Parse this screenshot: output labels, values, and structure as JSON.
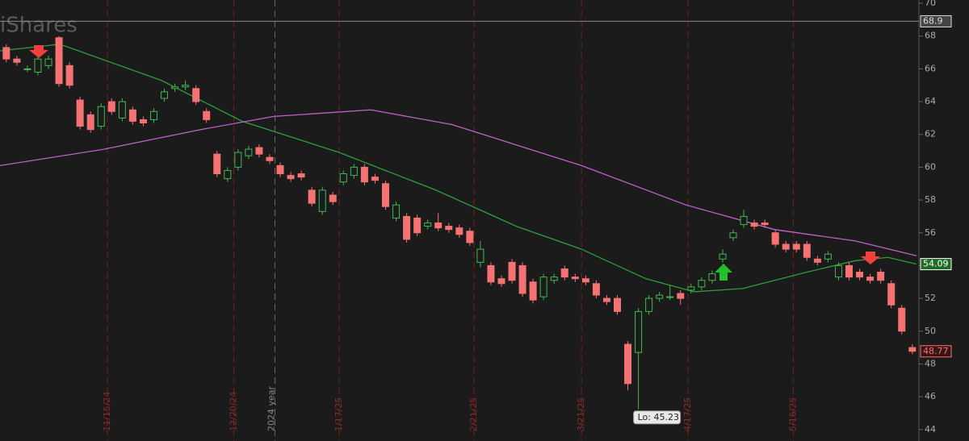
{
  "chart_data": {
    "type": "candlestick",
    "watermark": "iShares",
    "xlim": [
      -0.6,
      86.4
    ],
    "ylim": [
      43.3,
      70.2
    ],
    "yticks": [
      44,
      46,
      48,
      50,
      52,
      54,
      56,
      58,
      60,
      62,
      64,
      66,
      68,
      70
    ],
    "xticks": [
      {
        "value": 9.6,
        "label": "11/15/24"
      },
      {
        "value": 21.6,
        "label": "12/20/24"
      },
      {
        "value": 31.6,
        "label": "1/17/25"
      },
      {
        "value": 44.4,
        "label": "2/21/25"
      },
      {
        "value": 54.6,
        "label": "3/21/25"
      },
      {
        "value": 64.7,
        "label": "4/17/25"
      },
      {
        "value": 74.7,
        "label": "5/16/25"
      }
    ],
    "year_marker": {
      "value": 25.5,
      "label": "2024 year"
    },
    "up_color": "#3fb950",
    "down_color": "#f47272",
    "open": [
      67.3,
      66.6,
      66.0,
      65.8,
      66.2,
      67.9,
      66.2,
      64.1,
      63.2,
      62.5,
      64.0,
      63.0,
      63.5,
      62.9,
      62.9,
      64.2,
      64.8,
      64.9,
      64.8,
      63.4,
      60.8,
      59.3,
      60.0,
      60.7,
      61.2,
      60.6,
      60.1,
      59.5,
      59.6,
      58.6,
      57.3,
      58.3,
      59.1,
      59.5,
      60.0,
      59.4,
      59.0,
      56.9,
      57.0,
      56.9,
      56.4,
      56.6,
      56.4,
      56.3,
      56.1,
      54.2,
      54.0,
      53.2,
      54.2,
      54.0,
      53.0,
      52.1,
      53.1,
      53.8,
      53.3,
      53.2,
      52.9,
      52.0,
      52.0,
      49.2,
      48.7,
      51.2,
      52.0,
      52.1,
      52.3,
      52.5,
      52.7,
      53.1,
      54.4,
      55.7,
      56.5,
      56.6,
      56.6,
      56.0,
      55.3,
      55.3,
      55.3,
      54.4,
      54.4,
      53.3,
      54.0,
      53.6,
      53.3,
      53.6,
      52.9,
      51.4,
      49.0
    ],
    "high": [
      67.5,
      66.8,
      66.2,
      66.8,
      66.8,
      68.0,
      66.4,
      64.3,
      63.4,
      63.9,
      64.2,
      64.2,
      63.7,
      63.1,
      63.6,
      64.8,
      65.1,
      65.3,
      65.0,
      63.6,
      61.0,
      60.0,
      61.1,
      61.3,
      61.4,
      60.8,
      60.3,
      59.7,
      59.8,
      58.8,
      58.8,
      58.5,
      59.8,
      60.2,
      60.2,
      59.6,
      59.2,
      57.9,
      57.2,
      57.1,
      56.8,
      57.2,
      56.6,
      56.5,
      56.3,
      55.5,
      54.2,
      53.4,
      54.4,
      54.2,
      53.2,
      53.5,
      53.5,
      54.0,
      53.5,
      53.4,
      53.1,
      52.2,
      52.2,
      49.4,
      51.4,
      52.2,
      52.4,
      52.8,
      52.5,
      52.9,
      53.3,
      53.7,
      55.0,
      56.2,
      57.4,
      56.8,
      56.8,
      56.2,
      55.5,
      55.5,
      55.5,
      54.6,
      54.9,
      54.2,
      54.2,
      53.8,
      53.5,
      53.8,
      53.1,
      51.6,
      49.2
    ],
    "low": [
      66.4,
      66.2,
      65.8,
      65.6,
      66.0,
      64.9,
      64.8,
      62.3,
      62.1,
      62.3,
      63.2,
      62.8,
      62.6,
      62.5,
      62.7,
      64.0,
      64.6,
      64.7,
      63.8,
      62.7,
      59.4,
      59.1,
      59.8,
      60.5,
      60.6,
      60.2,
      59.4,
      59.1,
      59.2,
      57.6,
      57.1,
      57.7,
      58.9,
      59.3,
      58.9,
      59.0,
      57.4,
      56.7,
      55.4,
      55.8,
      56.2,
      56.1,
      56.0,
      55.7,
      55.2,
      53.9,
      52.8,
      52.7,
      52.9,
      52.1,
      51.7,
      51.9,
      52.9,
      53.1,
      53.0,
      52.8,
      52.0,
      51.6,
      51.0,
      46.4,
      45.23,
      51.0,
      51.8,
      51.9,
      51.6,
      52.3,
      52.5,
      52.9,
      54.2,
      55.5,
      56.3,
      56.2,
      56.3,
      55.1,
      54.8,
      54.8,
      54.3,
      54.0,
      54.2,
      53.1,
      53.1,
      53.1,
      52.9,
      52.9,
      51.4,
      49.8,
      48.6
    ],
    "close": [
      66.6,
      66.4,
      66.0,
      66.6,
      66.6,
      65.1,
      65.0,
      62.5,
      62.3,
      63.7,
      63.4,
      64.0,
      62.8,
      62.7,
      63.4,
      64.6,
      64.9,
      65.0,
      64.0,
      62.9,
      59.6,
      59.8,
      60.9,
      61.1,
      60.8,
      60.4,
      59.6,
      59.3,
      59.4,
      57.8,
      58.6,
      57.9,
      59.6,
      60.0,
      59.1,
      59.2,
      57.6,
      57.7,
      55.6,
      56.0,
      56.6,
      56.3,
      56.2,
      55.9,
      55.4,
      55.0,
      53.0,
      52.9,
      53.1,
      52.3,
      51.9,
      53.3,
      53.3,
      53.3,
      53.2,
      53.0,
      52.2,
      51.8,
      51.2,
      46.8,
      51.2,
      52.0,
      52.2,
      52.1,
      52.0,
      52.7,
      53.1,
      53.5,
      54.7,
      56.0,
      57.0,
      56.4,
      56.5,
      55.3,
      55.0,
      55.0,
      54.5,
      54.2,
      54.7,
      54.0,
      53.3,
      53.3,
      53.1,
      53.1,
      51.6,
      50.0,
      48.77
    ],
    "series": [
      {
        "color": "#2f9e3a",
        "x": [
          -0.6,
          5.1,
          14.7,
          22.4,
          31.6,
          40.8,
          48.4,
          54.6,
          60.7,
          65.3,
          69.9,
          76.0,
          80.6,
          83.7,
          86.4
        ],
        "values": [
          67.1,
          67.5,
          65.3,
          62.8,
          60.9,
          58.6,
          56.4,
          55.0,
          53.2,
          52.4,
          52.6,
          53.6,
          54.3,
          54.5,
          54.09
        ]
      },
      {
        "color": "#c061cb",
        "x": [
          -0.6,
          9.3,
          18.5,
          25.4,
          34.6,
          42.3,
          54.6,
          64.5,
          72.9,
          80.6,
          86.4
        ],
        "values": [
          60.1,
          61.1,
          62.3,
          63.1,
          63.5,
          62.6,
          60.1,
          57.7,
          56.2,
          55.5,
          54.6
        ]
      }
    ],
    "price_line": 68.9,
    "ma_last": 54.09,
    "last_price": 48.77,
    "low_label": "Lo: 45.23",
    "low_index": 60
  }
}
